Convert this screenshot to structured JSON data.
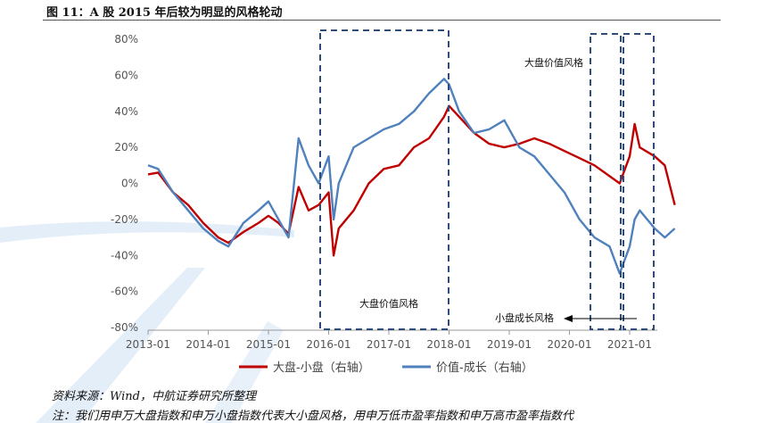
{
  "figure": {
    "title": "图 11：A 股 2015 年后较为明显的风格轮动",
    "source": "资料来源：Wind，中航证券研究所整理",
    "note": "注：我们用申万大盘指数和申万小盘指数代表大小盘风格，用申万低市盈率指数和申万高市盈率指数代"
  },
  "chart_data": {
    "type": "line",
    "x_tick_labels": [
      "2013-01",
      "2014-01",
      "2015-01",
      "2016-01",
      "2017-01",
      "2018-01",
      "2019-01",
      "2020-01",
      "2021-01"
    ],
    "y_tick_labels": [
      "80%",
      "60%",
      "40%",
      "20%",
      "0%",
      "-20%",
      "-40%",
      "-60%",
      "-80%"
    ],
    "xlim": [
      "2013-01",
      "2021-10"
    ],
    "ylim": [
      -80,
      80
    ],
    "grid": false,
    "legend_position": "bottom",
    "series": [
      {
        "name": "大盘-小盘（右轴）",
        "color": "#c00000",
        "points": [
          [
            "2013-01",
            5
          ],
          [
            "2013-03",
            6
          ],
          [
            "2013-06",
            -5
          ],
          [
            "2013-09",
            -12
          ],
          [
            "2013-12",
            -22
          ],
          [
            "2014-03",
            -30
          ],
          [
            "2014-05",
            -33
          ],
          [
            "2014-08",
            -27
          ],
          [
            "2014-11",
            -22
          ],
          [
            "2015-01",
            -18
          ],
          [
            "2015-03",
            -22
          ],
          [
            "2015-05",
            -28
          ],
          [
            "2015-07",
            -2
          ],
          [
            "2015-09",
            -15
          ],
          [
            "2015-11",
            -12
          ],
          [
            "2016-01",
            -5
          ],
          [
            "2016-02",
            -40
          ],
          [
            "2016-03",
            -25
          ],
          [
            "2016-06",
            -15
          ],
          [
            "2016-09",
            0
          ],
          [
            "2016-12",
            8
          ],
          [
            "2017-03",
            10
          ],
          [
            "2017-06",
            20
          ],
          [
            "2017-09",
            25
          ],
          [
            "2017-12",
            37
          ],
          [
            "2018-01",
            43
          ],
          [
            "2018-03",
            37
          ],
          [
            "2018-06",
            28
          ],
          [
            "2018-09",
            22
          ],
          [
            "2018-12",
            20
          ],
          [
            "2019-03",
            22
          ],
          [
            "2019-06",
            25
          ],
          [
            "2019-09",
            22
          ],
          [
            "2019-12",
            18
          ],
          [
            "2020-03",
            14
          ],
          [
            "2020-06",
            10
          ],
          [
            "2020-09",
            4
          ],
          [
            "2020-11",
            0
          ],
          [
            "2021-01",
            15
          ],
          [
            "2021-02",
            33
          ],
          [
            "2021-03",
            20
          ],
          [
            "2021-06",
            15
          ],
          [
            "2021-08",
            10
          ],
          [
            "2021-10",
            -12
          ]
        ]
      },
      {
        "name": "价值-成长（右轴）",
        "color": "#4f81bd",
        "points": [
          [
            "2013-01",
            10
          ],
          [
            "2013-03",
            8
          ],
          [
            "2013-06",
            -5
          ],
          [
            "2013-09",
            -15
          ],
          [
            "2013-12",
            -25
          ],
          [
            "2014-03",
            -32
          ],
          [
            "2014-05",
            -35
          ],
          [
            "2014-08",
            -22
          ],
          [
            "2014-11",
            -15
          ],
          [
            "2015-01",
            -10
          ],
          [
            "2015-03",
            -20
          ],
          [
            "2015-05",
            -30
          ],
          [
            "2015-07",
            25
          ],
          [
            "2015-09",
            10
          ],
          [
            "2015-11",
            0
          ],
          [
            "2016-01",
            15
          ],
          [
            "2016-02",
            -20
          ],
          [
            "2016-03",
            0
          ],
          [
            "2016-06",
            20
          ],
          [
            "2016-09",
            25
          ],
          [
            "2016-12",
            30
          ],
          [
            "2017-03",
            33
          ],
          [
            "2017-06",
            40
          ],
          [
            "2017-09",
            50
          ],
          [
            "2017-12",
            58
          ],
          [
            "2018-01",
            55
          ],
          [
            "2018-03",
            40
          ],
          [
            "2018-06",
            28
          ],
          [
            "2018-09",
            30
          ],
          [
            "2018-12",
            35
          ],
          [
            "2019-03",
            20
          ],
          [
            "2019-06",
            15
          ],
          [
            "2019-09",
            5
          ],
          [
            "2019-12",
            -5
          ],
          [
            "2020-03",
            -20
          ],
          [
            "2020-06",
            -30
          ],
          [
            "2020-09",
            -35
          ],
          [
            "2020-11",
            -50
          ],
          [
            "2021-01",
            -35
          ],
          [
            "2021-02",
            -20
          ],
          [
            "2021-03",
            -15
          ],
          [
            "2021-06",
            -25
          ],
          [
            "2021-08",
            -30
          ],
          [
            "2021-10",
            -25
          ]
        ]
      }
    ],
    "annotations": [
      {
        "text": "大盘价值风格",
        "x_start": "2016-01",
        "x_end": "2018-01"
      },
      {
        "text": "大盘价值风格",
        "x_start": "2020-12",
        "x_end": "2021-02"
      },
      {
        "text": "小盘成长风格",
        "x_start": "2021-02",
        "x_end": "2021-10",
        "arrow": "left"
      }
    ]
  }
}
